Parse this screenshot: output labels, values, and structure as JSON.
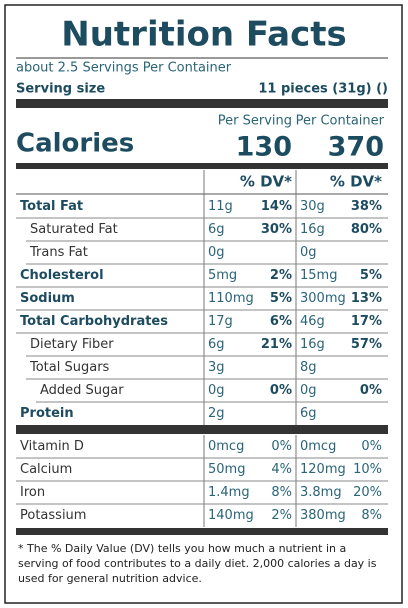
{
  "title": "Nutrition Facts",
  "servings": "about 2.5 Servings Per Container",
  "serving_size": {
    "label": "Serving size",
    "value": "11 pieces (31g) ()"
  },
  "calories": {
    "label": "Calories",
    "per_serving_header": "Per Serving",
    "per_container_header": "Per Container",
    "per_serving": "130",
    "per_container": "370"
  },
  "dv_header": [
    "% DV*",
    "% DV*"
  ],
  "nutrients": [
    {
      "name": "Total Fat",
      "bold": true,
      "indent": 0,
      "serving_amount": "11g",
      "serving_dv": "14%",
      "container_amount": "30g",
      "container_dv": "38%"
    },
    {
      "name": "Saturated Fat",
      "bold": false,
      "indent": 1,
      "serving_amount": "6g",
      "serving_dv": "30%",
      "container_amount": "16g",
      "container_dv": "80%"
    },
    {
      "name": "Trans Fat",
      "bold": false,
      "indent": 1,
      "serving_amount": "0g",
      "container_amount": "0g"
    },
    {
      "name": "Cholesterol",
      "bold": true,
      "indent": 0,
      "serving_amount": "5mg",
      "serving_dv": "2%",
      "container_amount": "15mg",
      "container_dv": "5%"
    },
    {
      "name": "Sodium",
      "bold": true,
      "indent": 0,
      "serving_amount": "110mg",
      "serving_dv": "5%",
      "container_amount": "300mg",
      "container_dv": "13%"
    },
    {
      "name": "Total Carbohydrates",
      "bold": true,
      "indent": 0,
      "serving_amount": "17g",
      "serving_dv": "6%",
      "container_amount": "46g",
      "container_dv": "17%"
    },
    {
      "name": "Dietary Fiber",
      "bold": false,
      "indent": 1,
      "serving_amount": "6g",
      "serving_dv": "21%",
      "container_amount": "16g",
      "container_dv": "57%"
    },
    {
      "name": "Total Sugars",
      "bold": false,
      "indent": 1,
      "serving_amount": "3g",
      "container_amount": "8g"
    },
    {
      "name": "Added Sugar",
      "bold": false,
      "indent": 2,
      "serving_amount": "0g",
      "serving_dv": "0%",
      "container_amount": "0g",
      "container_dv": "0%"
    },
    {
      "name": "Protein",
      "bold": true,
      "indent": 0,
      "serving_amount": "2g",
      "container_amount": "6g"
    }
  ],
  "vitamins": [
    {
      "name": "Vitamin D",
      "serving_amount": "0mcg",
      "serving_dv": "0%",
      "container_amount": "0mcg",
      "container_dv": "0%"
    },
    {
      "name": "Calcium",
      "serving_amount": "50mg",
      "serving_dv": "4%",
      "container_amount": "120mg",
      "container_dv": "10%"
    },
    {
      "name": "Iron",
      "serving_amount": "1.4mg",
      "serving_dv": "8%",
      "container_amount": "3.8mg",
      "container_dv": "20%"
    },
    {
      "name": "Potassium",
      "serving_amount": "140mg",
      "serving_dv": "2%",
      "container_amount": "380mg",
      "container_dv": "8%"
    }
  ],
  "footnote": "* The % Daily Value (DV) tells you how much a nutrient in a serving of food contributes to a daily diet. 2,000 calories a day is used for general nutrition advice."
}
